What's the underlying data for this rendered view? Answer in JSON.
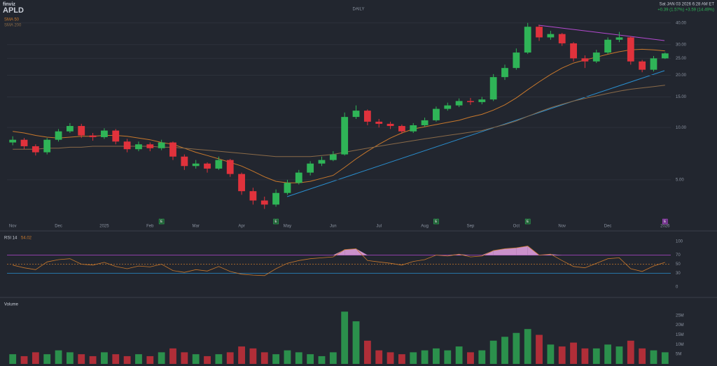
{
  "header": {
    "brand": "finviz",
    "ticker": "APLD",
    "timeframe": "DAILY",
    "timestamp": "Sat JAN 03 2026 6:28 AM ET",
    "change": "+0.39 (1.57%) +3.59 (14.49%)"
  },
  "chart_data": [
    {
      "type": "candlestick",
      "categories": [
        "Nov",
        null,
        null,
        null,
        "Dec",
        null,
        null,
        null,
        "2025",
        null,
        null,
        null,
        "Feb",
        null,
        null,
        null,
        "Mar",
        null,
        null,
        null,
        "Apr",
        null,
        null,
        null,
        "May",
        null,
        null,
        null,
        "Jun",
        null,
        null,
        null,
        "Jul",
        null,
        null,
        null,
        "Aug",
        null,
        null,
        null,
        "Sep",
        null,
        null,
        null,
        "Oct",
        null,
        null,
        null,
        "Nov",
        null,
        null,
        null,
        "Dec",
        null,
        null,
        null,
        null,
        "2026"
      ],
      "open": [
        8.2,
        8.5,
        7.8,
        7.2,
        8.5,
        9.5,
        10.2,
        9.0,
        8.8,
        9.6,
        8.3,
        7.5,
        8.0,
        7.6,
        8.2,
        6.8,
        6.0,
        6.2,
        5.8,
        6.5,
        5.4,
        4.3,
        3.8,
        3.6,
        4.2,
        4.8,
        5.5,
        6.2,
        6.5,
        7.0,
        11.5,
        12.5,
        10.8,
        10.5,
        10.2,
        9.5,
        10.3,
        11.0,
        12.8,
        13.4,
        14.2,
        14.0,
        14.5,
        19.5,
        22.0,
        27.0,
        38.0,
        33.0,
        34.5,
        30.5,
        25.0,
        24.0,
        27.0,
        32.0,
        33.0,
        24.0,
        21.5,
        25.0
      ],
      "high": [
        8.9,
        8.7,
        8.0,
        8.7,
        9.8,
        10.6,
        10.5,
        9.3,
        9.9,
        9.8,
        8.6,
        8.3,
        8.2,
        8.5,
        8.3,
        7.0,
        6.5,
        6.3,
        6.8,
        6.6,
        5.5,
        4.5,
        4.0,
        4.4,
        5.0,
        5.7,
        6.4,
        6.8,
        7.3,
        12.2,
        13.4,
        12.7,
        11.2,
        10.8,
        10.4,
        10.6,
        11.4,
        13.2,
        13.9,
        14.7,
        14.8,
        15.0,
        20.3,
        23.0,
        28.5,
        40.0,
        39.0,
        36.0,
        35.0,
        31.0,
        26.0,
        28.0,
        33.0,
        35.5,
        33.5,
        24.5,
        25.8,
        27.0
      ],
      "low": [
        7.9,
        7.5,
        6.9,
        7.0,
        8.3,
        9.3,
        8.7,
        8.4,
        8.6,
        8.0,
        7.2,
        7.3,
        7.3,
        7.4,
        6.5,
        5.7,
        5.8,
        5.5,
        5.7,
        5.2,
        4.1,
        3.6,
        3.4,
        3.5,
        4.1,
        4.7,
        5.3,
        6.0,
        6.4,
        6.9,
        11.2,
        10.3,
        10.0,
        9.8,
        9.2,
        9.3,
        10.1,
        10.8,
        12.5,
        13.1,
        13.5,
        13.6,
        14.2,
        18.8,
        21.5,
        26.5,
        31.5,
        32.0,
        29.5,
        24.0,
        22.0,
        23.5,
        26.5,
        31.0,
        23.0,
        20.8,
        21.0,
        24.8
      ],
      "close": [
        8.5,
        7.8,
        7.2,
        8.5,
        9.5,
        10.2,
        9.0,
        8.8,
        9.6,
        8.3,
        7.5,
        8.0,
        7.6,
        8.2,
        6.8,
        6.0,
        6.2,
        5.8,
        6.5,
        5.4,
        4.3,
        3.8,
        3.6,
        4.2,
        4.8,
        5.5,
        6.2,
        6.5,
        7.0,
        11.5,
        12.5,
        10.8,
        10.5,
        10.2,
        9.5,
        10.3,
        11.0,
        12.8,
        13.4,
        14.2,
        14.0,
        14.5,
        19.5,
        22.0,
        27.0,
        38.0,
        33.0,
        34.5,
        30.5,
        25.0,
        24.0,
        27.0,
        32.0,
        33.0,
        24.0,
        21.5,
        25.0,
        26.7
      ],
      "up_color": "#2fb457",
      "down_color": "#e0323c",
      "series": [
        {
          "name": "SMA 50",
          "color": "#c8782c",
          "values": [
            9.5,
            9.3,
            9.0,
            8.8,
            8.7,
            8.8,
            8.9,
            8.9,
            9.0,
            9.0,
            8.9,
            8.7,
            8.5,
            8.2,
            8.0,
            7.6,
            7.2,
            6.9,
            6.6,
            6.3,
            6.0,
            5.6,
            5.2,
            4.9,
            4.8,
            4.8,
            4.9,
            5.1,
            5.3,
            5.9,
            6.6,
            7.3,
            8.0,
            8.7,
            9.3,
            9.8,
            10.1,
            10.4,
            10.7,
            11.0,
            11.5,
            11.9,
            12.6,
            13.5,
            14.8,
            16.5,
            18.3,
            20.2,
            22.0,
            23.5,
            24.5,
            25.4,
            26.4,
            27.3,
            28.0,
            28.2,
            28.0,
            27.6
          ]
        },
        {
          "name": "SMA 200",
          "color": "#8a6a48",
          "values": [
            7.5,
            7.5,
            7.5,
            7.6,
            7.6,
            7.7,
            7.7,
            7.8,
            7.8,
            7.8,
            7.8,
            7.8,
            7.8,
            7.7,
            7.7,
            7.6,
            7.5,
            7.4,
            7.3,
            7.2,
            7.1,
            7.0,
            6.9,
            6.8,
            6.8,
            6.8,
            6.8,
            6.9,
            7.0,
            7.2,
            7.4,
            7.6,
            7.8,
            8.0,
            8.2,
            8.4,
            8.6,
            8.8,
            9.0,
            9.2,
            9.4,
            9.6,
            10.0,
            10.4,
            10.9,
            11.6,
            12.3,
            13.0,
            13.6,
            14.2,
            14.7,
            15.2,
            15.7,
            16.2,
            16.6,
            16.9,
            17.2,
            17.5
          ]
        }
      ],
      "log_scale": true,
      "ylim": [
        3,
        45
      ],
      "yticks": [
        {
          "value": 5,
          "label": "5.00"
        },
        {
          "value": 10,
          "label": "10.00"
        },
        {
          "value": 15,
          "label": "15.00"
        },
        {
          "value": 20,
          "label": "20.00"
        },
        {
          "value": 25,
          "label": "25.00"
        },
        {
          "value": 30,
          "label": "30.00"
        },
        {
          "value": 40,
          "label": "40.00"
        }
      ],
      "earnings": [
        "E",
        "E",
        "E",
        "E",
        "E"
      ]
    },
    {
      "type": "line",
      "title": "RSI 14",
      "value_label": "54.02",
      "series": [
        {
          "name": "RSI",
          "color": "#c8782c",
          "values": [
            48,
            42,
            38,
            55,
            60,
            62,
            50,
            48,
            54,
            45,
            40,
            46,
            44,
            50,
            36,
            32,
            38,
            35,
            45,
            34,
            28,
            26,
            25,
            40,
            52,
            58,
            62,
            64,
            66,
            82,
            84,
            58,
            55,
            52,
            48,
            56,
            60,
            70,
            68,
            72,
            66,
            68,
            80,
            84,
            86,
            90,
            70,
            72,
            58,
            45,
            42,
            52,
            62,
            64,
            40,
            34,
            46,
            54
          ]
        }
      ],
      "ylim": [
        0,
        100
      ],
      "yticks": [
        0,
        30,
        50,
        70,
        100
      ],
      "overbought_color": "#e9a6e6"
    },
    {
      "type": "bar",
      "title": "Volume",
      "values": [
        5,
        4,
        6,
        5,
        7,
        6,
        5,
        4,
        6,
        5,
        4,
        5,
        4,
        6,
        8,
        6,
        5,
        4,
        5,
        6,
        9,
        8,
        6,
        5,
        7,
        6,
        5,
        4,
        6,
        27,
        22,
        12,
        7,
        6,
        5,
        6,
        7,
        8,
        7,
        9,
        6,
        7,
        12,
        14,
        16,
        18,
        15,
        10,
        9,
        11,
        8,
        8,
        10,
        9,
        12,
        8,
        7,
        6
      ],
      "ylim": [
        0,
        30
      ],
      "yticks": [
        {
          "value": 5,
          "label": "5M"
        },
        {
          "value": 10,
          "label": "10M"
        },
        {
          "value": 15,
          "label": "15M"
        },
        {
          "value": 20,
          "label": "20M"
        },
        {
          "value": 25,
          "label": "25M"
        }
      ]
    }
  ]
}
